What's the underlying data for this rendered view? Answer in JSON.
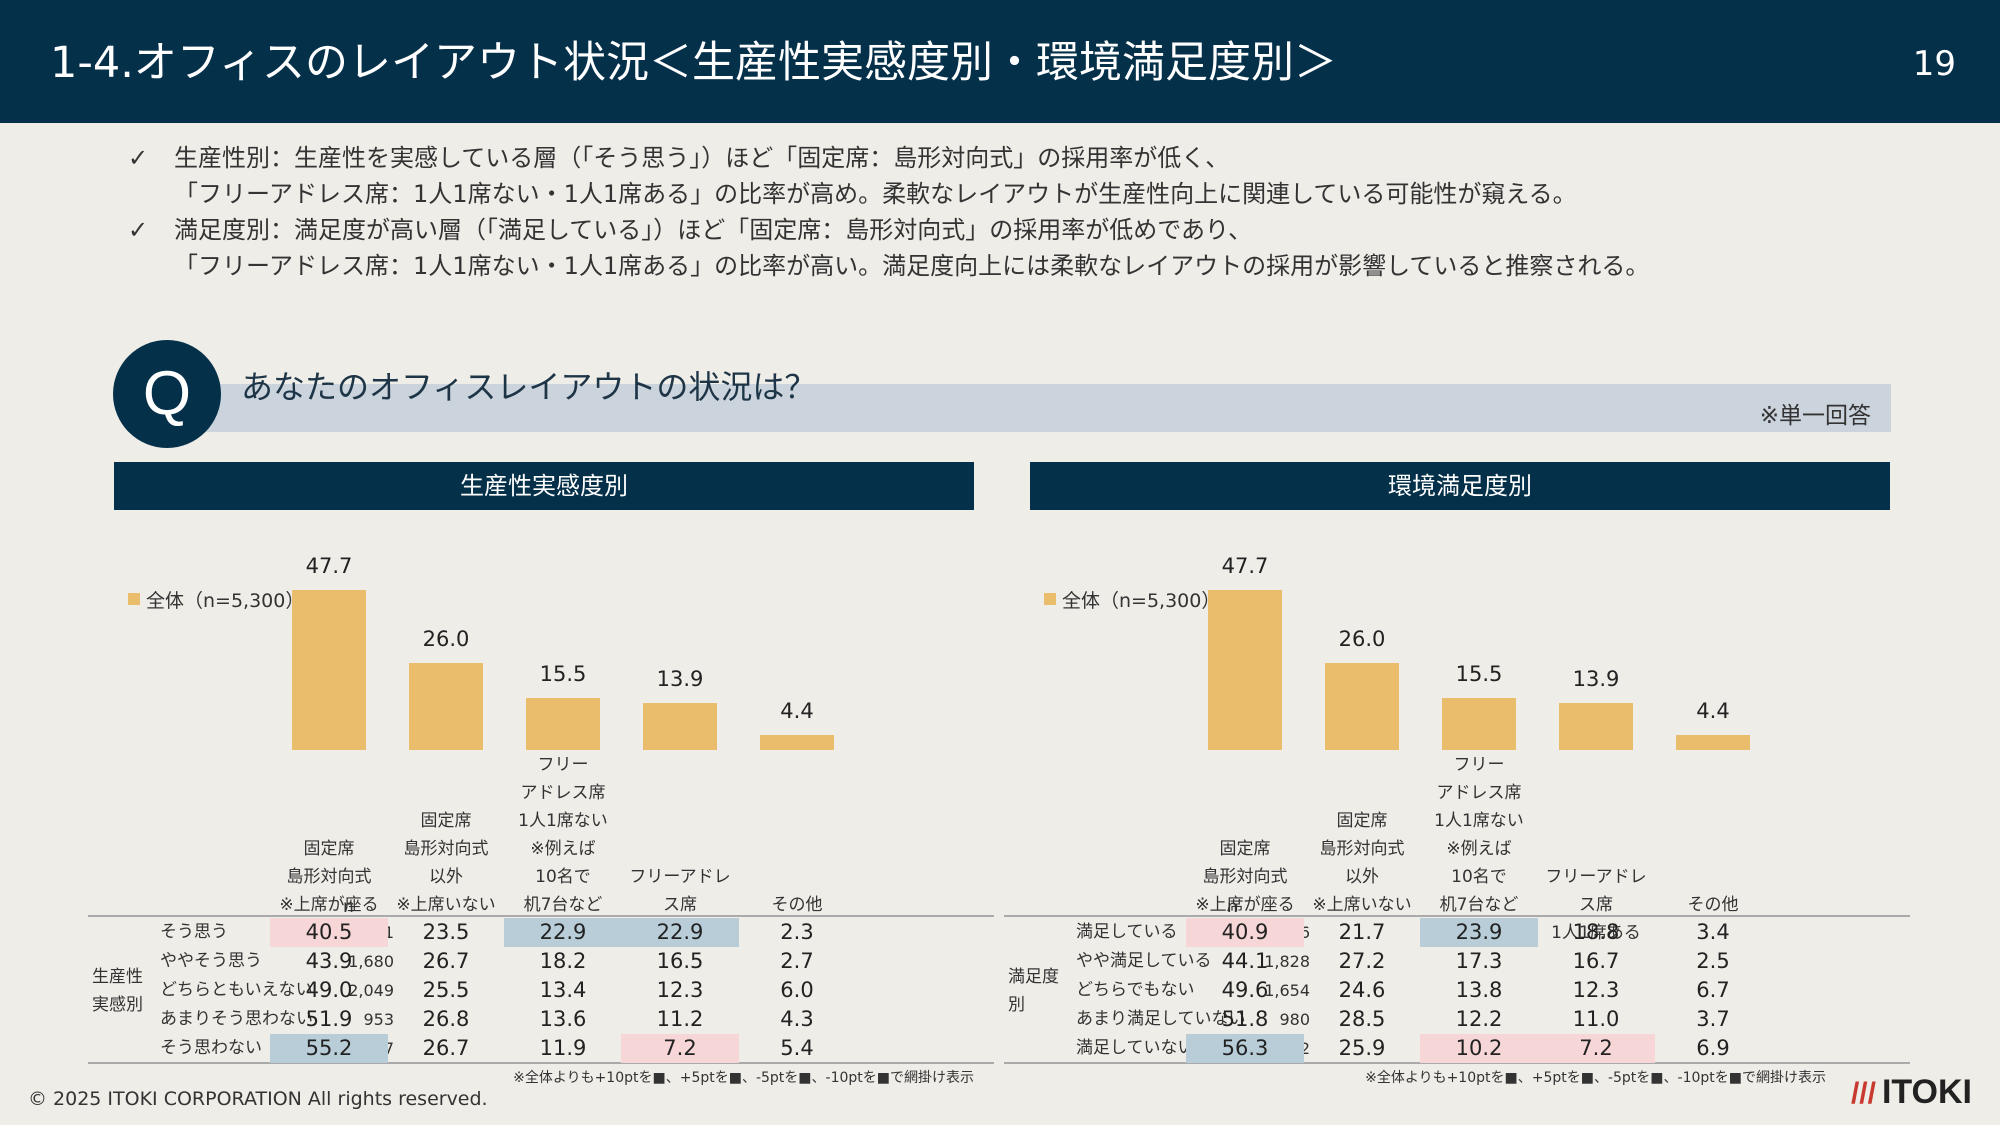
{
  "header": {
    "title": "1-4.オフィスのレイアウト状況＜生産性実感度別・環境満足度別＞",
    "page_number": "19"
  },
  "bullets": [
    {
      "mark": "✓",
      "lines": [
        "生産性別：生産性を実感している層（「そう思う」）ほど「固定席：島形対向式」の採用率が低く、",
        "「フリーアドレス席：1人1席ない・1人1席ある」の比率が高め。柔軟なレイアウトが生産性向上に関連している可能性が窺える。"
      ]
    },
    {
      "mark": "✓",
      "lines": [
        "満足度別：満足度が高い層（「満足している」）ほど「固定席：島形対向式」の採用率が低めであり、",
        "「フリーアドレス席：1人1席ない・1人1席ある」の比率が高い。満足度向上には柔軟なレイアウトの採用が影響していると推察される。"
      ]
    }
  ],
  "question": {
    "mark": "Q",
    "text": "あなたのオフィスレイアウトの状況は？",
    "note": "※単一回答"
  },
  "colors": {
    "bar": "#e9bd6c",
    "high": "#b8cdd8",
    "low": "#f6d6d6",
    "header": "#05304a"
  },
  "chart_data": [
    {
      "type": "bar",
      "title": "生産性実感度別",
      "legend": "全体（n=5,300）",
      "categories": [
        [
          "固定席",
          "島形対向式",
          "※上席が座る"
        ],
        [
          "固定席",
          "島形対向式",
          "以外",
          "※上席いない"
        ],
        [
          "フリー",
          "アドレス席",
          "1人1席ない",
          "※例えば",
          "10名で",
          "机7台など"
        ],
        [
          "フリーアドレス席",
          "1人1席ある"
        ],
        [
          "その他"
        ]
      ],
      "values": [
        47.7,
        26.0,
        15.5,
        13.9,
        4.4
      ],
      "value_labels": [
        "47.7",
        "26.0",
        "15.5",
        "13.9",
        "4.4"
      ],
      "n_header": "n",
      "group_label": [
        "生産性",
        "実感別"
      ],
      "rows": [
        {
          "label": "そう思う",
          "n": "341",
          "values": [
            "40.5",
            "23.5",
            "22.9",
            "22.9",
            "2.3"
          ],
          "hl": [
            "low",
            "",
            "high",
            "high",
            ""
          ]
        },
        {
          "label": "ややそう思う",
          "n": "1,680",
          "values": [
            "43.9",
            "26.7",
            "18.2",
            "16.5",
            "2.7"
          ],
          "hl": [
            "",
            "",
            "",
            "",
            ""
          ]
        },
        {
          "label": "どちらともいえない",
          "n": "2,049",
          "values": [
            "49.0",
            "25.5",
            "13.4",
            "12.3",
            "6.0"
          ],
          "hl": [
            "",
            "",
            "",
            "",
            ""
          ]
        },
        {
          "label": "あまりそう思わない",
          "n": "953",
          "values": [
            "51.9",
            "26.8",
            "13.6",
            "11.2",
            "4.3"
          ],
          "hl": [
            "",
            "",
            "",
            "",
            ""
          ]
        },
        {
          "label": "そう思わない",
          "n": "277",
          "values": [
            "55.2",
            "26.7",
            "11.9",
            "7.2",
            "5.4"
          ],
          "hl": [
            "high",
            "",
            "",
            "low",
            ""
          ]
        }
      ],
      "note": "※全体よりも+10ptを■、+5ptを■、-5ptを■、-10ptを■で網掛け表示"
    },
    {
      "type": "bar",
      "title": "環境満足度別",
      "legend": "全体（n=5,300）",
      "categories": [
        [
          "固定席",
          "島形対向式",
          "※上席が座る"
        ],
        [
          "固定席",
          "島形対向式",
          "以外",
          "※上席いない"
        ],
        [
          "フリー",
          "アドレス席",
          "1人1席ない",
          "※例えば",
          "10名で",
          "机7台など"
        ],
        [
          "フリーアドレス席",
          "1人1席ある"
        ],
        [
          "その他"
        ]
      ],
      "values": [
        47.7,
        26.0,
        15.5,
        13.9,
        4.4
      ],
      "value_labels": [
        "47.7",
        "26.0",
        "15.5",
        "13.9",
        "4.4"
      ],
      "n_header": "n",
      "group_label": [
        "満足度",
        "別"
      ],
      "rows": [
        {
          "label": "満足している",
          "n": "506",
          "values": [
            "40.9",
            "21.7",
            "23.9",
            "18.8",
            "3.4"
          ],
          "hl": [
            "low",
            "",
            "high",
            "",
            ""
          ]
        },
        {
          "label": "やや満足している",
          "n": "1,828",
          "values": [
            "44.1",
            "27.2",
            "17.3",
            "16.7",
            "2.5"
          ],
          "hl": [
            "",
            "",
            "",
            "",
            ""
          ]
        },
        {
          "label": "どちらでもない",
          "n": "1,654",
          "values": [
            "49.6",
            "24.6",
            "13.8",
            "12.3",
            "6.7"
          ],
          "hl": [
            "",
            "",
            "",
            "",
            ""
          ]
        },
        {
          "label": "あまり満足していない",
          "n": "980",
          "values": [
            "51.8",
            "28.5",
            "12.2",
            "11.0",
            "3.7"
          ],
          "hl": [
            "",
            "",
            "",
            "",
            ""
          ]
        },
        {
          "label": "満足していない",
          "n": "332",
          "values": [
            "56.3",
            "25.9",
            "10.2",
            "7.2",
            "6.9"
          ],
          "hl": [
            "high",
            "",
            "low",
            "low",
            ""
          ]
        }
      ],
      "note": "※全体よりも+10ptを■、+5ptを■、-5ptを■、-10ptを■で網掛け表示"
    }
  ],
  "footer": {
    "copyright": "© 2025 ITOKI CORPORATION All rights reserved.",
    "logo": "ITOKI",
    "logo_mark": "///"
  }
}
